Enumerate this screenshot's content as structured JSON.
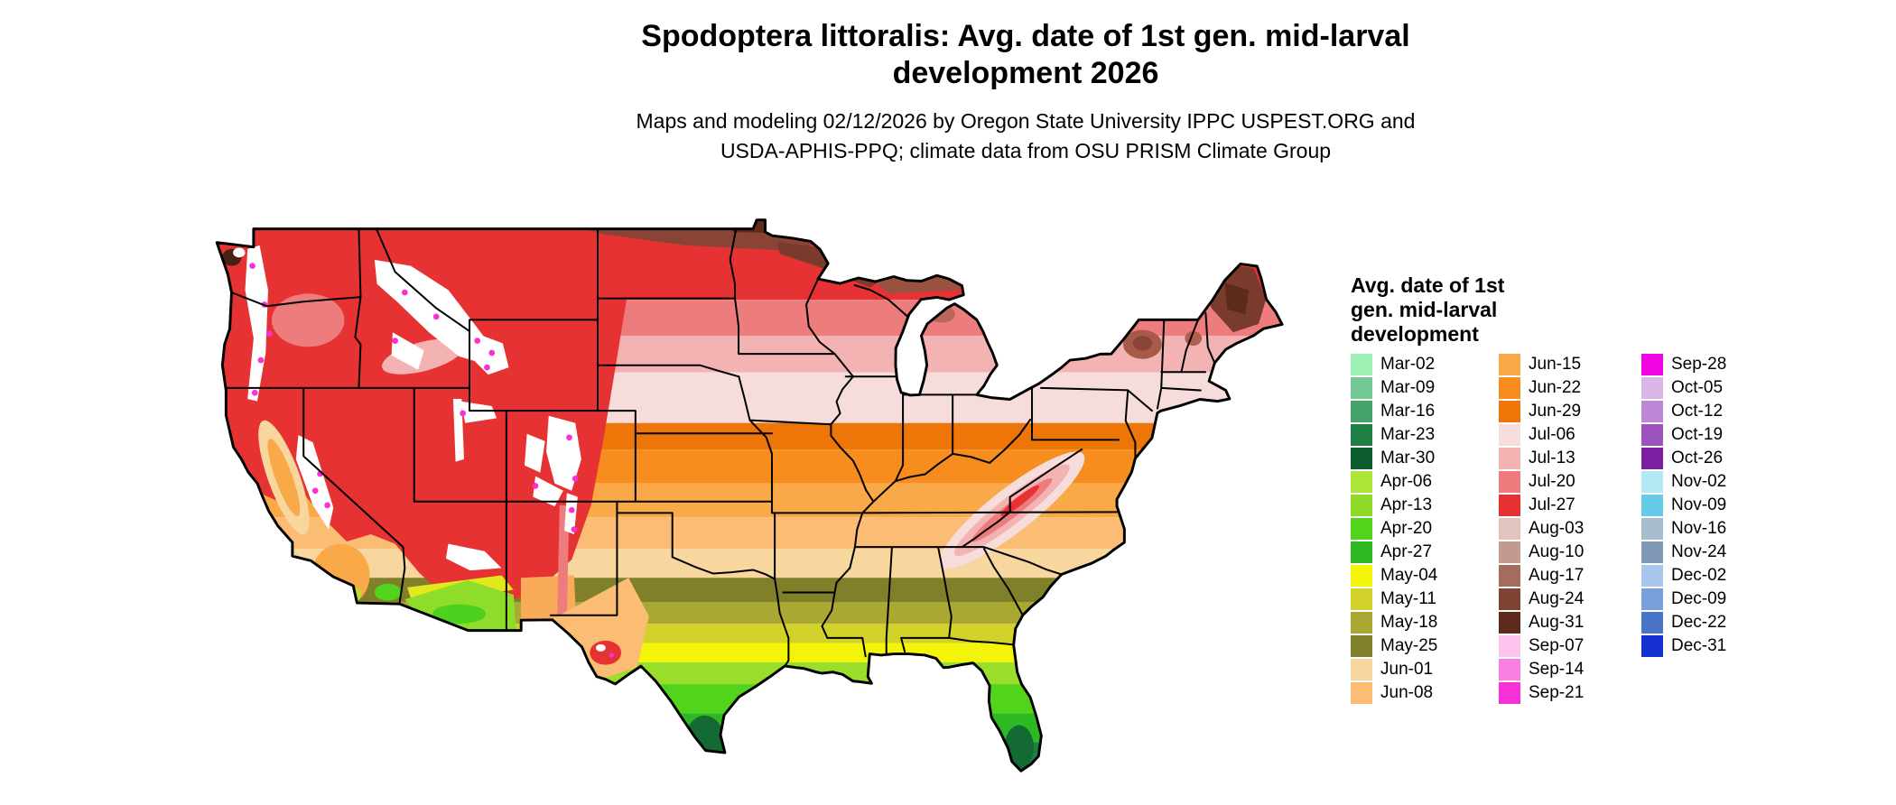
{
  "header": {
    "title_lines": [
      "Spodoptera littoralis: Avg. date of 1st gen. mid-larval",
      "development 2026"
    ],
    "subtitle_lines": [
      "Maps and modeling 02/12/2026 by Oregon State University IPPC USPEST.ORG and",
      "USDA-APHIS-PPQ; climate data from OSU PRISM Climate Group"
    ]
  },
  "legend": {
    "title": "Avg. date of 1st gen. mid-larval development",
    "columns": [
      [
        {
          "label": "Mar-02",
          "color": "#9ef0b4"
        },
        {
          "label": "Mar-09",
          "color": "#72c993"
        },
        {
          "label": "Mar-16",
          "color": "#46a46a"
        },
        {
          "label": "Mar-23",
          "color": "#1e7f45"
        },
        {
          "label": "Mar-30",
          "color": "#0c5c2e"
        },
        {
          "label": "Apr-06",
          "color": "#abe636"
        },
        {
          "label": "Apr-13",
          "color": "#90da28"
        },
        {
          "label": "Apr-20",
          "color": "#52d41d"
        },
        {
          "label": "Apr-27",
          "color": "#2eb821"
        },
        {
          "label": "May-04",
          "color": "#f4f40b"
        },
        {
          "label": "May-11",
          "color": "#d2d22a"
        },
        {
          "label": "May-18",
          "color": "#a8a832"
        },
        {
          "label": "May-25",
          "color": "#80802a"
        },
        {
          "label": "Jun-01",
          "color": "#f8d79e"
        },
        {
          "label": "Jun-08",
          "color": "#fbbc74"
        }
      ],
      [
        {
          "label": "Jun-15",
          "color": "#f9a948"
        },
        {
          "label": "Jun-22",
          "color": "#f68d1e"
        },
        {
          "label": "Jun-29",
          "color": "#ee7508"
        },
        {
          "label": "Jul-06",
          "color": "#f7dcdc"
        },
        {
          "label": "Jul-13",
          "color": "#f3b3b3"
        },
        {
          "label": "Jul-20",
          "color": "#ed7d7d"
        },
        {
          "label": "Jul-27",
          "color": "#e63232"
        },
        {
          "label": "Aug-03",
          "color": "#e0c4bd"
        },
        {
          "label": "Aug-10",
          "color": "#c49a90"
        },
        {
          "label": "Aug-17",
          "color": "#a56b5c"
        },
        {
          "label": "Aug-24",
          "color": "#7d4434"
        },
        {
          "label": "Aug-31",
          "color": "#5e2a1c"
        },
        {
          "label": "Sep-07",
          "color": "#fcc3ec"
        },
        {
          "label": "Sep-14",
          "color": "#fa7fe3"
        },
        {
          "label": "Sep-21",
          "color": "#f830d8"
        }
      ],
      [
        {
          "label": "Sep-28",
          "color": "#ef06e3"
        },
        {
          "label": "Oct-05",
          "color": "#dab6e8"
        },
        {
          "label": "Oct-12",
          "color": "#bd87d6"
        },
        {
          "label": "Oct-19",
          "color": "#9c53bd"
        },
        {
          "label": "Oct-26",
          "color": "#7b1fa0"
        },
        {
          "label": "Nov-02",
          "color": "#b3e8f5"
        },
        {
          "label": "Nov-09",
          "color": "#66cbe8"
        },
        {
          "label": "Nov-16",
          "color": "#a9bdd1"
        },
        {
          "label": "Nov-24",
          "color": "#8099b8"
        },
        {
          "label": "Dec-02",
          "color": "#a9c6ec"
        },
        {
          "label": "Dec-09",
          "color": "#7aa0dc"
        },
        {
          "label": "Dec-22",
          "color": "#4a74c8"
        },
        {
          "label": "Dec-31",
          "color": "#1430d0"
        }
      ]
    ]
  }
}
